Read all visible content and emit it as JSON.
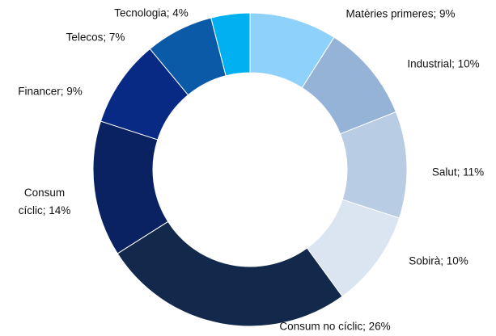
{
  "chart_data": {
    "type": "donut",
    "values": [
      9,
      10,
      11,
      10,
      26,
      14,
      9,
      7,
      4
    ],
    "value_labels": [
      "Matèries primeres; 9%",
      "Industrial; 10%",
      "Salut; 11%",
      "Sobirà; 10%",
      "Consum no cíclic; 26%",
      "Consum cíclic; 14%",
      "Financer; 9%",
      "Telecos; 7%",
      "Tecnologia; 4%"
    ],
    "colors": [
      "#8ed1fa",
      "#95b3d7",
      "#b8cce4",
      "#dbe5f1",
      "#13294b",
      "#0a2262",
      "#082a85",
      "#0b5aa8",
      "#00b0f0"
    ]
  }
}
